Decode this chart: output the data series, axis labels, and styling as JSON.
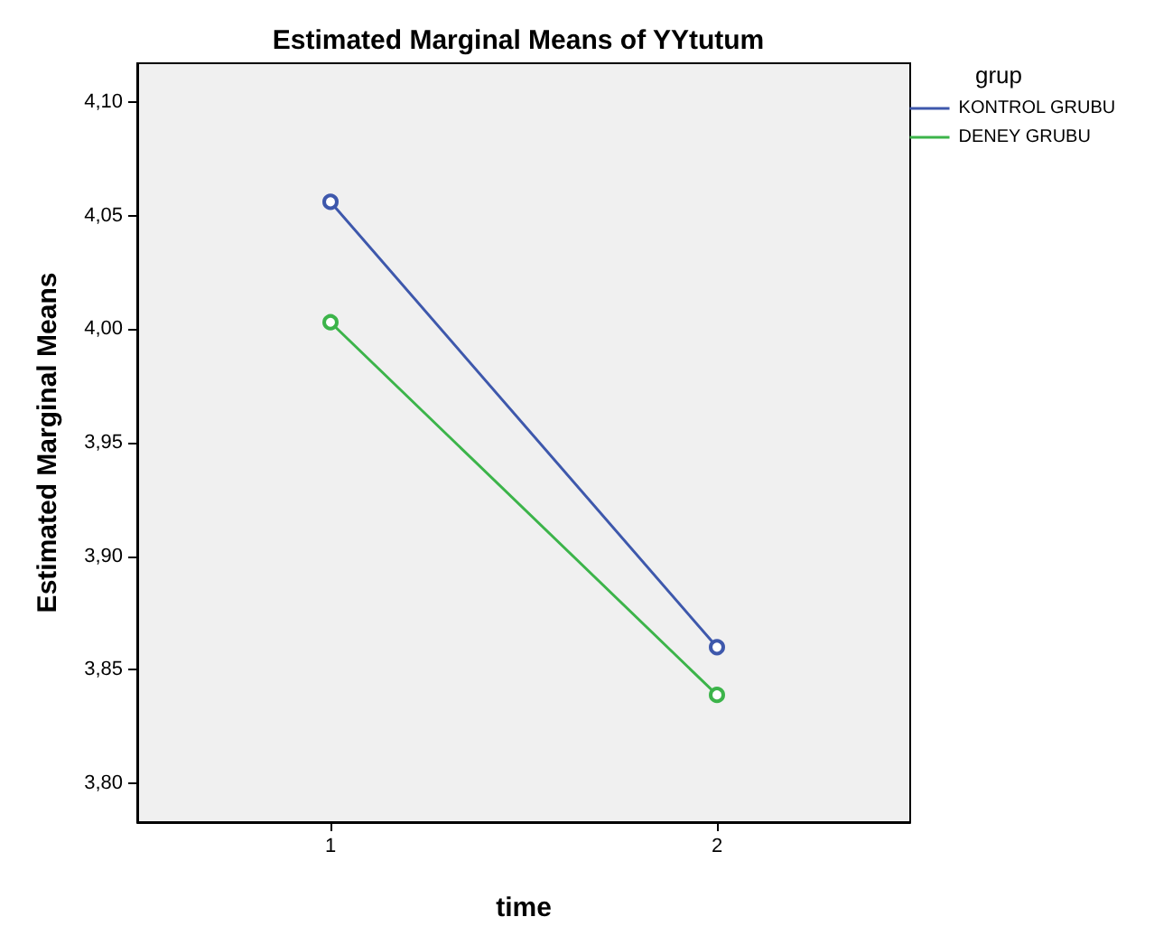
{
  "chart_data": {
    "type": "line",
    "title": "Estimated Marginal Means of YYtutum",
    "xlabel": "time",
    "ylabel": "Estimated Marginal Means",
    "legend_title": "grup",
    "categories": [
      "1",
      "2"
    ],
    "series": [
      {
        "name": "KONTROL GRUBU",
        "color": "#3e58ac",
        "values": [
          4.056,
          3.86
        ]
      },
      {
        "name": "DENEY GRUBU",
        "color": "#3cb44a",
        "values": [
          4.003,
          3.839
        ]
      }
    ],
    "ylim": [
      3.783,
      4.117
    ],
    "yticks": [
      {
        "value": 3.8,
        "label": "3,80"
      },
      {
        "value": 3.85,
        "label": "3,85"
      },
      {
        "value": 3.9,
        "label": "3,90"
      },
      {
        "value": 3.95,
        "label": "3,95"
      },
      {
        "value": 4.0,
        "label": "4,00"
      },
      {
        "value": 4.05,
        "label": "4,05"
      },
      {
        "value": 4.1,
        "label": "4,10"
      }
    ],
    "grid": false,
    "legend": "top right",
    "marker": "circle",
    "line_style": "solid"
  }
}
